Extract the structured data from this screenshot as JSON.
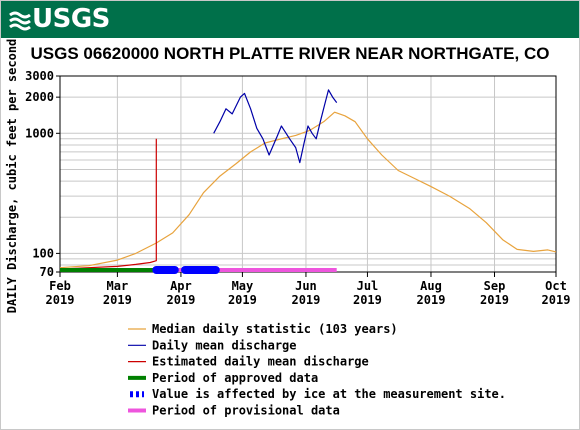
{
  "header": {
    "logo_text": "USGS",
    "title": "USGS 06620000 NORTH PLATTE RIVER NEAR NORTHGATE, CO"
  },
  "colors": {
    "banner": "#00704a",
    "median": "#e8a33d",
    "daily": "#0000a8",
    "estimated": "#cc0000",
    "approved": "#008000",
    "ice": "#0000ff",
    "provisional": "#ee55dd",
    "grid": "#c8c8c8"
  },
  "chart_data": {
    "type": "line",
    "ylabel": "DAILY Discharge, cubic feet per second",
    "yscale": "log",
    "ylim": [
      70,
      3000
    ],
    "y_tick_labels": [
      "3000",
      "2000",
      "1000",
      "100",
      "70"
    ],
    "y_ticks": [
      3000,
      2000,
      1000,
      100,
      70
    ],
    "xlim": [
      "2019-02-01",
      "2019-10-01"
    ],
    "x_tick_labels": [
      {
        "month": "Feb",
        "year": "2019",
        "date": "2019-02-01"
      },
      {
        "month": "Mar",
        "year": "2019",
        "date": "2019-03-01"
      },
      {
        "month": "Apr",
        "year": "2019",
        "date": "2019-04-01"
      },
      {
        "month": "May",
        "year": "2019",
        "date": "2019-05-01"
      },
      {
        "month": "Jun",
        "year": "2019",
        "date": "2019-06-01"
      },
      {
        "month": "Jul",
        "year": "2019",
        "date": "2019-07-01"
      },
      {
        "month": "Aug",
        "year": "2019",
        "date": "2019-08-01"
      },
      {
        "month": "Sep",
        "year": "2019",
        "date": "2019-09-01"
      },
      {
        "month": "Oct",
        "year": "2019",
        "date": "2019-10-01"
      }
    ],
    "series": [
      {
        "name": "Median daily statistic (103 years)",
        "key": "median",
        "points": [
          [
            "2019-02-01",
            76
          ],
          [
            "2019-02-15",
            79
          ],
          [
            "2019-03-01",
            88
          ],
          [
            "2019-03-10",
            100
          ],
          [
            "2019-03-20",
            122
          ],
          [
            "2019-03-28",
            148
          ],
          [
            "2019-04-05",
            210
          ],
          [
            "2019-04-12",
            320
          ],
          [
            "2019-04-20",
            440
          ],
          [
            "2019-04-28",
            560
          ],
          [
            "2019-05-05",
            700
          ],
          [
            "2019-05-12",
            830
          ],
          [
            "2019-05-20",
            900
          ],
          [
            "2019-05-27",
            960
          ],
          [
            "2019-06-03",
            1060
          ],
          [
            "2019-06-10",
            1260
          ],
          [
            "2019-06-15",
            1500
          ],
          [
            "2019-06-20",
            1400
          ],
          [
            "2019-06-25",
            1250
          ],
          [
            "2019-07-01",
            900
          ],
          [
            "2019-07-08",
            660
          ],
          [
            "2019-07-16",
            490
          ],
          [
            "2019-07-24",
            420
          ],
          [
            "2019-08-01",
            360
          ],
          [
            "2019-08-10",
            300
          ],
          [
            "2019-08-20",
            235
          ],
          [
            "2019-08-28",
            180
          ],
          [
            "2019-09-05",
            130
          ],
          [
            "2019-09-12",
            108
          ],
          [
            "2019-09-20",
            104
          ],
          [
            "2019-09-27",
            107
          ],
          [
            "2019-10-01",
            103
          ]
        ]
      },
      {
        "name": "Daily mean discharge",
        "key": "daily",
        "points": [
          [
            "2019-04-17",
            1000
          ],
          [
            "2019-04-20",
            1250
          ],
          [
            "2019-04-23",
            1600
          ],
          [
            "2019-04-26",
            1450
          ],
          [
            "2019-04-30",
            2000
          ],
          [
            "2019-05-02",
            2150
          ],
          [
            "2019-05-05",
            1600
          ],
          [
            "2019-05-08",
            1100
          ],
          [
            "2019-05-11",
            900
          ],
          [
            "2019-05-14",
            660
          ],
          [
            "2019-05-18",
            950
          ],
          [
            "2019-05-20",
            1150
          ],
          [
            "2019-05-24",
            900
          ],
          [
            "2019-05-27",
            760
          ],
          [
            "2019-05-29",
            570
          ],
          [
            "2019-05-31",
            820
          ],
          [
            "2019-06-02",
            1150
          ],
          [
            "2019-06-04",
            1000
          ],
          [
            "2019-06-06",
            900
          ],
          [
            "2019-06-08",
            1250
          ],
          [
            "2019-06-10",
            1700
          ],
          [
            "2019-06-12",
            2300
          ],
          [
            "2019-06-14",
            2000
          ],
          [
            "2019-06-16",
            1800
          ]
        ]
      },
      {
        "name": "Estimated daily mean discharge",
        "key": "estimated",
        "points": [
          [
            "2019-02-01",
            74
          ],
          [
            "2019-02-15",
            76
          ],
          [
            "2019-03-01",
            78
          ],
          [
            "2019-03-10",
            81
          ],
          [
            "2019-03-17",
            84
          ],
          [
            "2019-03-20",
            87
          ],
          [
            "2019-03-20",
            900
          ]
        ]
      }
    ],
    "bars": [
      {
        "name": "Period of approved data",
        "key": "approved",
        "start": "2019-02-01",
        "end": "2019-03-20"
      },
      {
        "name": "Period of provisional data",
        "key": "provisional",
        "start": "2019-03-20",
        "end": "2019-06-16"
      }
    ],
    "ice_periods": [
      {
        "start": "2019-03-20",
        "end": "2019-03-29"
      },
      {
        "start": "2019-04-03",
        "end": "2019-04-18"
      }
    ],
    "legend_placement": "bottom",
    "grid": true
  },
  "legend": {
    "items": [
      {
        "label": "Median daily statistic (103 years)",
        "key": "median",
        "symbol": "line"
      },
      {
        "label": "Daily mean discharge",
        "key": "daily",
        "symbol": "line"
      },
      {
        "label": "Estimated daily mean discharge",
        "key": "estimated",
        "symbol": "line"
      },
      {
        "label": "Period of approved data",
        "key": "approved",
        "symbol": "thickbar"
      },
      {
        "label": "Value is affected by ice at the measurement site.",
        "key": "ice",
        "symbol": "dashes"
      },
      {
        "label": "Period of provisional data",
        "key": "provisional",
        "symbol": "thickbar"
      }
    ]
  }
}
